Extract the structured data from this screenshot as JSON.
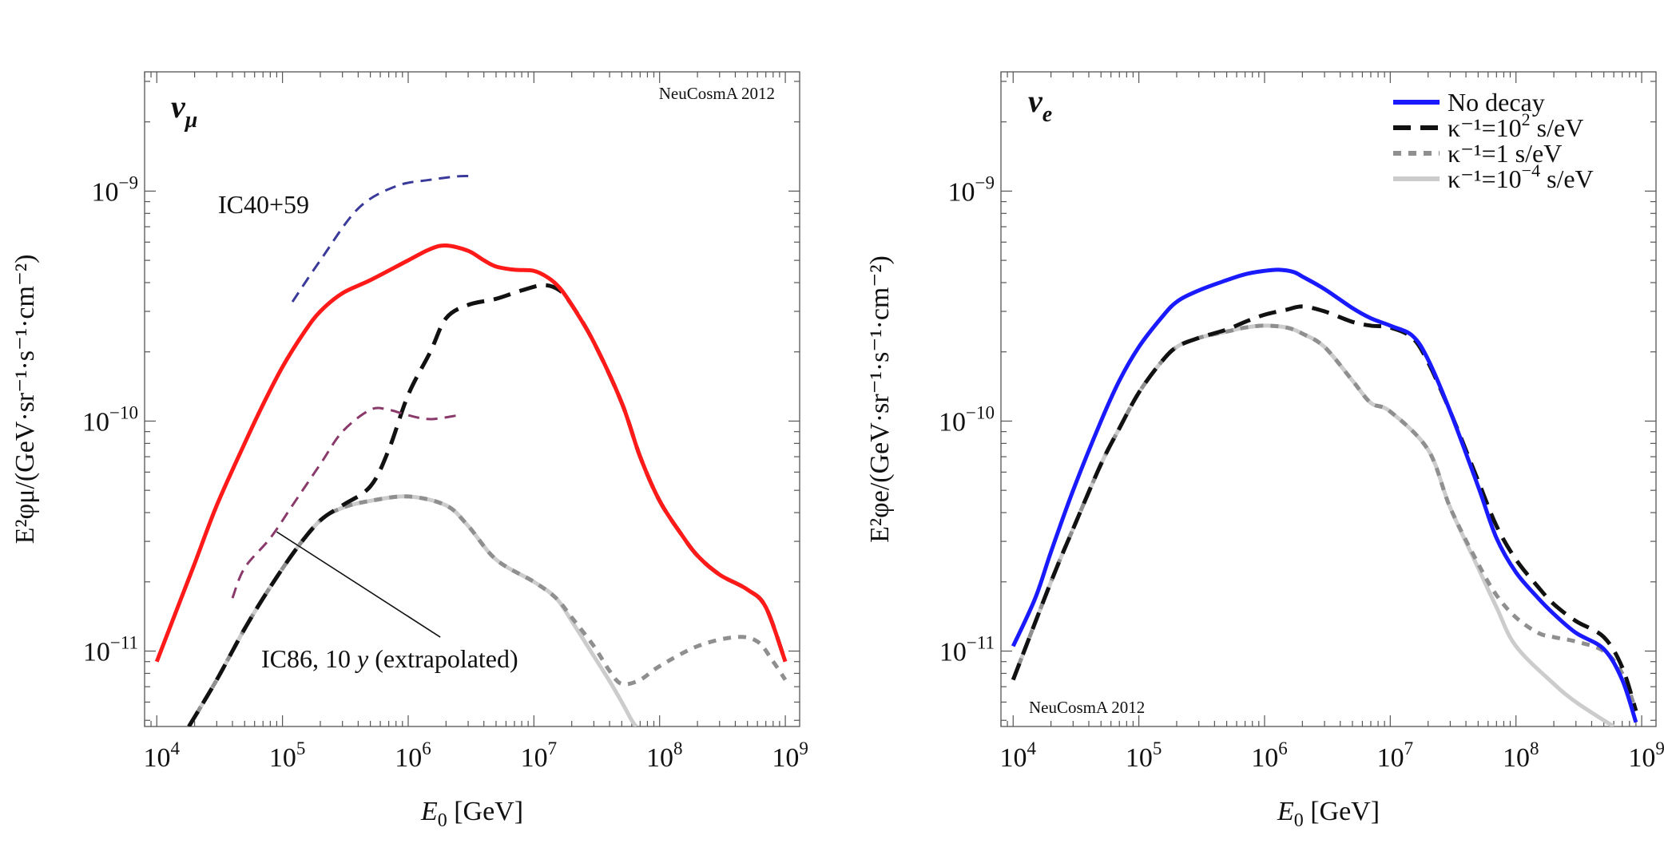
{
  "chart_data": [
    {
      "type": "line",
      "panel_title": "ν_μ",
      "title_base": "ν",
      "title_sub": "μ",
      "watermark": "NeuCosmA 2012",
      "xlabel": {
        "base": "E",
        "sub": "0",
        "rest": " [GeV]"
      },
      "ylabel": "E²φμ/(GeV·sr⁻¹·s⁻¹·cm⁻²)",
      "xscale": "log",
      "yscale": "log",
      "xlim": [
        8000,
        1300000000.0
      ],
      "ylim": [
        4.7e-12,
        3.3e-09
      ],
      "x_ticks": [
        {
          "value": 10000.0,
          "base": "10",
          "exp": "4"
        },
        {
          "value": 100000.0,
          "base": "10",
          "exp": "5"
        },
        {
          "value": 1000000.0,
          "base": "10",
          "exp": "6"
        },
        {
          "value": 10000000.0,
          "base": "10",
          "exp": "7"
        },
        {
          "value": 100000000.0,
          "base": "10",
          "exp": "8"
        },
        {
          "value": 1000000000.0,
          "base": "10",
          "exp": "9"
        }
      ],
      "y_ticks": [
        {
          "value": 1e-11,
          "base": "10",
          "exp": "−11"
        },
        {
          "value": 1e-10,
          "base": "10",
          "exp": "−10"
        },
        {
          "value": 1e-09,
          "base": "10",
          "exp": "−9"
        }
      ],
      "series": [
        {
          "name": "κ⁻¹=10⁻⁴ s/eV",
          "color": "#cccccc",
          "dash": "",
          "x": [
            18000.0,
            30000.0,
            50000.0,
            80000.0,
            130000.0,
            200000.0,
            300000.0,
            500000.0,
            1000000.0,
            2000000.0,
            3000000.0,
            5000000.0,
            10000000.0,
            15000000.0,
            20000000.0,
            30000000.0,
            40000000.0,
            50000000.0,
            60000000.0,
            65000000.0
          ],
          "y": [
            4.7e-12,
            7.5e-12,
            1.25e-11,
            1.9e-11,
            2.8e-11,
            3.7e-11,
            4.2e-11,
            4.5e-11,
            4.7e-11,
            4.3e-11,
            3.5e-11,
            2.5e-11,
            2e-11,
            1.7e-11,
            1.35e-11,
            9.5e-12,
            7.4e-12,
            6e-12,
            5e-12,
            4.7e-12
          ]
        },
        {
          "name": "κ⁻¹=1 s/eV",
          "color": "#8f8f8f",
          "dash": "10,9",
          "x": [
            18000.0,
            30000.0,
            50000.0,
            80000.0,
            130000.0,
            200000.0,
            300000.0,
            500000.0,
            1000000.0,
            2000000.0,
            3000000.0,
            5000000.0,
            10000000.0,
            15000000.0,
            20000000.0,
            30000000.0,
            40000000.0,
            50000000.0,
            70000000.0,
            100000000.0,
            200000000.0,
            400000000.0,
            600000000.0,
            800000000.0,
            1000000000.0
          ],
          "y": [
            4.7e-12,
            7.5e-12,
            1.25e-11,
            1.9e-11,
            2.8e-11,
            3.7e-11,
            4.2e-11,
            4.5e-11,
            4.7e-11,
            4.3e-11,
            3.5e-11,
            2.5e-11,
            2e-11,
            1.7e-11,
            1.4e-11,
            1.05e-11,
            8.2e-12,
            7.2e-12,
            7.5e-12,
            8.6e-12,
            1.05e-11,
            1.15e-11,
            1.1e-11,
            9e-12,
            7.5e-12
          ]
        },
        {
          "name": "κ⁻¹=10² s/eV",
          "color": "#111111",
          "dash": "22,12",
          "x": [
            18000.0,
            30000.0,
            50000.0,
            80000.0,
            130000.0,
            200000.0,
            300000.0,
            500000.0,
            700000.0,
            1000000.0,
            1500000.0,
            2000000.0,
            3000000.0,
            5000000.0,
            8000000.0,
            12000000.0,
            16000000.0,
            20000000.0,
            30000000.0,
            50000000.0,
            70000000.0,
            100000000.0,
            150000000.0,
            200000000.0,
            300000000.0,
            500000000.0,
            700000000.0,
            1000000000.0
          ],
          "y": [
            4.7e-12,
            7.5e-12,
            1.25e-11,
            1.9e-11,
            2.8e-11,
            3.7e-11,
            4.3e-11,
            5.2e-11,
            7.5e-11,
            1.3e-10,
            2e-10,
            2.8e-10,
            3.2e-10,
            3.4e-10,
            3.7e-10,
            3.9e-10,
            3.7e-10,
            3.2e-10,
            2.2e-10,
            1.2e-10,
            7e-11,
            4.5e-11,
            3.2e-11,
            2.6e-11,
            2.15e-11,
            1.85e-11,
            1.55e-11,
            9e-12
          ]
        },
        {
          "name": "No decay",
          "color": "#ff1a1a",
          "dash": "",
          "x": [
            10000.0,
            15000.0,
            20000.0,
            30000.0,
            50000.0,
            70000.0,
            100000.0,
            150000.0,
            200000.0,
            300000.0,
            500000.0,
            1000000.0,
            1500000.0,
            2000000.0,
            3000000.0,
            4000000.0,
            5000000.0,
            7000000.0,
            10000000.0,
            13000000.0,
            16000000.0,
            20000000.0,
            30000000.0,
            50000000.0,
            70000000.0,
            100000000.0,
            150000000.0,
            200000000.0,
            300000000.0,
            500000000.0,
            700000000.0,
            1000000000.0
          ],
          "y": [
            9e-12,
            1.6e-11,
            2.4e-11,
            4.3e-11,
            8e-11,
            1.18e-10,
            1.72e-10,
            2.45e-10,
            3e-10,
            3.6e-10,
            4.1e-10,
            5e-10,
            5.6e-10,
            5.8e-10,
            5.5e-10,
            5e-10,
            4.7e-10,
            4.55e-10,
            4.5e-10,
            4.2e-10,
            3.8e-10,
            3.2e-10,
            2.2e-10,
            1.2e-10,
            7e-11,
            4.5e-11,
            3.2e-11,
            2.6e-11,
            2.15e-11,
            1.85e-11,
            1.55e-11,
            9e-12
          ]
        },
        {
          "name": "IC40+59",
          "color": "#3a3a9a",
          "dash": "14,9",
          "x": [
            120000.0,
            200000.0,
            400000.0,
            800000.0,
            1500000.0,
            2500000.0,
            3300000.0
          ],
          "y": [
            3.3e-10,
            5e-10,
            8.4e-10,
            1.05e-09,
            1.12e-09,
            1.16e-09,
            1.16e-09
          ]
        },
        {
          "name": "IC86, 10 y (extrapolated)",
          "color": "#8a3a6a",
          "dash": "14,9",
          "x": [
            40000.0,
            50000.0,
            80000.0,
            120000.0,
            200000.0,
            300000.0,
            500000.0,
            700000.0,
            1000000.0,
            1500000.0,
            2500000.0
          ],
          "y": [
            1.7e-11,
            2.3e-11,
            3.1e-11,
            4.3e-11,
            6.5e-11,
            9e-11,
            1.12e-10,
            1.12e-10,
            1.06e-10,
            1.02e-10,
            1.06e-10
          ]
        }
      ],
      "annotations": {
        "ic40_label": "IC40+59",
        "ic86_label_prefix": "IC86, 10 ",
        "ic86_label_y": "y",
        "ic86_label_suffix": " (extrapolated)",
        "ic86_pointer": {
          "from": [
            1800000.0,
            1.15e-11
          ],
          "to": [
            90000.0,
            3.3e-11
          ]
        }
      }
    },
    {
      "type": "line",
      "panel_title": "ν_e",
      "title_base": "ν",
      "title_sub": "e",
      "watermark": "NeuCosmA 2012",
      "xlabel": {
        "base": "E",
        "sub": "0",
        "rest": " [GeV]"
      },
      "ylabel": "E²φe/(GeV·sr⁻¹·s⁻¹·cm⁻²)",
      "xscale": "log",
      "yscale": "log",
      "xlim": [
        8000,
        1300000000.0
      ],
      "ylim": [
        4.7e-12,
        3.3e-09
      ],
      "x_ticks": [
        {
          "value": 10000.0,
          "base": "10",
          "exp": "4"
        },
        {
          "value": 100000.0,
          "base": "10",
          "exp": "5"
        },
        {
          "value": 1000000.0,
          "base": "10",
          "exp": "6"
        },
        {
          "value": 10000000.0,
          "base": "10",
          "exp": "7"
        },
        {
          "value": 100000000.0,
          "base": "10",
          "exp": "8"
        },
        {
          "value": 1000000000.0,
          "base": "10",
          "exp": "9"
        }
      ],
      "y_ticks": [
        {
          "value": 1e-11,
          "base": "10",
          "exp": "−11"
        },
        {
          "value": 1e-10,
          "base": "10",
          "exp": "−10"
        },
        {
          "value": 1e-09,
          "base": "10",
          "exp": "−9"
        }
      ],
      "legend": {
        "position": "top-right",
        "entries": [
          {
            "base": "No decay",
            "exp": "",
            "rest": "",
            "color": "#1a1aff",
            "dash": ""
          },
          {
            "base": "κ⁻¹=10",
            "exp": "2",
            "rest": " s/eV",
            "color": "#111111",
            "dash": "22,12"
          },
          {
            "base": "κ⁻¹=1",
            "exp": "",
            "rest": " s/eV",
            "color": "#8f8f8f",
            "dash": "10,9"
          },
          {
            "base": "κ⁻¹=10",
            "exp": "−4",
            "rest": " s/eV",
            "color": "#cccccc",
            "dash": ""
          }
        ]
      },
      "series": [
        {
          "name": "κ⁻¹=10⁻⁴ s/eV",
          "color": "#cccccc",
          "dash": "",
          "x": [
            10000.0,
            20000.0,
            30000.0,
            50000.0,
            70000.0,
            100000.0,
            150000.0,
            200000.0,
            300000.0,
            500000.0,
            700000.0,
            1000000.0,
            1500000.0,
            2000000.0,
            3000000.0,
            5000000.0,
            7000000.0,
            10000000.0,
            20000000.0,
            30000000.0,
            50000000.0,
            70000000.0,
            100000000.0,
            200000000.0,
            300000000.0,
            500000000.0,
            600000000.0
          ],
          "y": [
            7.5e-12,
            2e-11,
            3.4e-11,
            6.5e-11,
            9.3e-11,
            1.33e-10,
            1.8e-10,
            2.1e-10,
            2.3e-10,
            2.45e-10,
            2.55e-10,
            2.6e-10,
            2.55e-10,
            2.4e-10,
            2.1e-10,
            1.5e-10,
            1.2e-10,
            1.1e-10,
            7.5e-11,
            4.2e-11,
            2.3e-11,
            1.55e-11,
            1.05e-11,
            7.2e-12,
            6e-12,
            5e-12,
            4.7e-12
          ]
        },
        {
          "name": "κ⁻¹=1 s/eV",
          "color": "#8f8f8f",
          "dash": "10,9",
          "x": [
            10000.0,
            20000.0,
            30000.0,
            50000.0,
            70000.0,
            100000.0,
            150000.0,
            200000.0,
            300000.0,
            500000.0,
            700000.0,
            1000000.0,
            1500000.0,
            2000000.0,
            3000000.0,
            5000000.0,
            7000000.0,
            10000000.0,
            20000000.0,
            30000000.0,
            50000000.0,
            70000000.0,
            100000000.0,
            150000000.0,
            200000000.0,
            300000000.0,
            500000000.0,
            700000000.0,
            900000000.0
          ],
          "y": [
            7.5e-12,
            2e-11,
            3.4e-11,
            6.5e-11,
            9.3e-11,
            1.33e-10,
            1.8e-10,
            2.1e-10,
            2.3e-10,
            2.45e-10,
            2.55e-10,
            2.6e-10,
            2.55e-10,
            2.4e-10,
            2.1e-10,
            1.5e-10,
            1.2e-10,
            1.1e-10,
            7.5e-11,
            4.2e-11,
            2.4e-11,
            1.75e-11,
            1.4e-11,
            1.2e-11,
            1.15e-11,
            1.1e-11,
            1e-11,
            8e-12,
            5.5e-12
          ]
        },
        {
          "name": "κ⁻¹=10² s/eV",
          "color": "#111111",
          "dash": "22,12",
          "x": [
            10000.0,
            20000.0,
            30000.0,
            50000.0,
            70000.0,
            100000.0,
            150000.0,
            200000.0,
            300000.0,
            500000.0,
            700000.0,
            1000000.0,
            1500000.0,
            2000000.0,
            3000000.0,
            5000000.0,
            7000000.0,
            10000000.0,
            15000000.0,
            20000000.0,
            30000000.0,
            50000000.0,
            70000000.0,
            100000000.0,
            150000000.0,
            200000000.0,
            300000000.0,
            500000000.0,
            700000000.0,
            900000000.0
          ],
          "y": [
            7.5e-12,
            2e-11,
            3.4e-11,
            6.5e-11,
            9.3e-11,
            1.33e-10,
            1.8e-10,
            2.1e-10,
            2.3e-10,
            2.5e-10,
            2.7e-10,
            2.9e-10,
            3.05e-10,
            3.15e-10,
            3e-10,
            2.7e-10,
            2.6e-10,
            2.55e-10,
            2.3e-10,
            1.8e-10,
            1.1e-10,
            5.5e-11,
            3.5e-11,
            2.5e-11,
            1.9e-11,
            1.6e-11,
            1.35e-11,
            1.15e-11,
            8.5e-12,
            5.5e-12
          ]
        },
        {
          "name": "No decay",
          "color": "#1a1aff",
          "dash": "",
          "x": [
            10000.0,
            15000.0,
            20000.0,
            30000.0,
            50000.0,
            70000.0,
            100000.0,
            150000.0,
            200000.0,
            300000.0,
            500000.0,
            700000.0,
            1000000.0,
            1300000.0,
            1700000.0,
            2000000.0,
            3000000.0,
            5000000.0,
            7000000.0,
            10000000.0,
            15000000.0,
            20000000.0,
            30000000.0,
            50000000.0,
            70000000.0,
            100000000.0,
            150000000.0,
            200000000.0,
            300000000.0,
            500000000.0,
            700000000.0,
            900000000.0
          ],
          "y": [
            1.05e-11,
            1.7e-11,
            2.7e-11,
            5e-11,
            1e-10,
            1.5e-10,
            2.1e-10,
            2.8e-10,
            3.3e-10,
            3.7e-10,
            4.1e-10,
            4.35e-10,
            4.5e-10,
            4.55e-10,
            4.45e-10,
            4.25e-10,
            3.75e-10,
            3.1e-10,
            2.8e-10,
            2.6e-10,
            2.35e-10,
            1.85e-10,
            1.1e-10,
            5.2e-11,
            3.1e-11,
            2.2e-11,
            1.7e-11,
            1.45e-11,
            1.2e-11,
            1.02e-11,
            7.5e-12,
            4.9e-12
          ]
        }
      ]
    }
  ]
}
